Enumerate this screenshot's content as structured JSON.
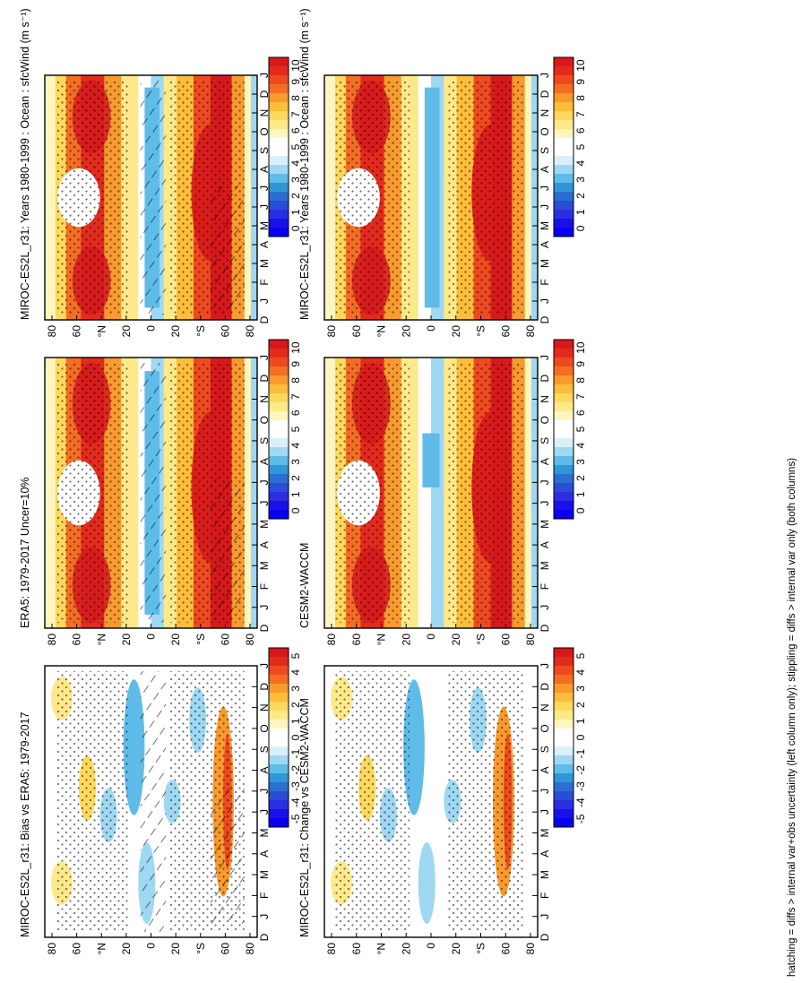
{
  "figure": {
    "footnote": "hatching = diffs > internal var+obs uncertainty (left column only); stippling = diffs > internal var only (both columns)"
  },
  "colorbar": {
    "abs_labels": [
      "10",
      "9",
      "8",
      "7",
      "6",
      "5",
      "4",
      "3",
      "2",
      "1",
      "0"
    ],
    "diff_labels": [
      "5",
      "4",
      "3",
      "2",
      "1",
      "0",
      "-1",
      "-2",
      "-3",
      "-4",
      "-5"
    ],
    "abs_colors": [
      "#d7191c",
      "#e42a1d",
      "#ee4a1f",
      "#f46d22",
      "#f89a2e",
      "#fbbd3a",
      "#fcd85c",
      "#fde98a",
      "#fff6bf",
      "#ffffff",
      "#ffffff",
      "#d9f0fb",
      "#9fd8f3",
      "#5fbce8",
      "#2f97d8",
      "#2a6fd0",
      "#2a4cd6",
      "#2a2fe0",
      "#1a10ea",
      "#0a00f0"
    ],
    "diff_colors": [
      "#d7191c",
      "#e42a1d",
      "#ee4a1f",
      "#f46d22",
      "#f89a2e",
      "#fbbd3a",
      "#fcd85c",
      "#fde98a",
      "#fff6bf",
      "#ffffff",
      "#ffffff",
      "#d9f0fb",
      "#9fd8f3",
      "#5fbce8",
      "#2f97d8",
      "#2a6fd0",
      "#2a4cd6",
      "#2a2fe0",
      "#1a10ea",
      "#0a00f0"
    ]
  },
  "axes": {
    "months": [
      "D",
      "J",
      "F",
      "M",
      "A",
      "M",
      "J",
      "J",
      "A",
      "S",
      "O",
      "N",
      "D",
      "J"
    ],
    "lat_labels": [
      "80",
      "60",
      "°N",
      "20",
      "0",
      "20",
      "°S",
      "60",
      "80"
    ]
  },
  "chart_data": [
    {
      "type": "heatmap",
      "panel": "left-top",
      "title": "MIROC-ES2L_r31: Years 1980-1999 : Ocean : sfcWind (m s⁻¹)",
      "x": [
        "Dec",
        "Jan",
        "Feb",
        "Mar",
        "Apr",
        "May",
        "Jun",
        "Jul",
        "Aug",
        "Sep",
        "Oct",
        "Nov",
        "Dec",
        "Jan"
      ],
      "y": [
        -90,
        -60,
        -30,
        0,
        30,
        60,
        90
      ],
      "field": "model_climatology",
      "hatching": true,
      "stippling": true,
      "zlim": [
        0,
        10
      ]
    },
    {
      "type": "heatmap",
      "panel": "left-middle",
      "title": "ERA5: 1979-2017 Uncer=10%",
      "field": "obs_climatology",
      "hatching": true,
      "stippling": true,
      "zlim": [
        0,
        10
      ]
    },
    {
      "type": "heatmap",
      "panel": "left-bottom",
      "title": "MIROC-ES2L_r31: Bias vs ERA5: 1979-2017",
      "field": "bias",
      "hatching": true,
      "stippling": true,
      "zlim": [
        -5,
        5
      ]
    },
    {
      "type": "heatmap",
      "panel": "right-top",
      "title": "MIROC-ES2L_r31: Years 1980-1999 : Ocean : sfcWind (m s⁻¹)",
      "field": "model_climatology",
      "hatching": false,
      "stippling": true,
      "zlim": [
        0,
        10
      ]
    },
    {
      "type": "heatmap",
      "panel": "right-middle",
      "title": "CESM2-WACCM",
      "field": "reference_model_climatology",
      "hatching": false,
      "stippling": true,
      "zlim": [
        0,
        10
      ]
    },
    {
      "type": "heatmap",
      "panel": "right-bottom",
      "title": "MIROC-ES2L_r31: Change vs CESM2-WACCM",
      "field": "difference",
      "hatching": false,
      "stippling": true,
      "zlim": [
        -5,
        5
      ]
    }
  ]
}
